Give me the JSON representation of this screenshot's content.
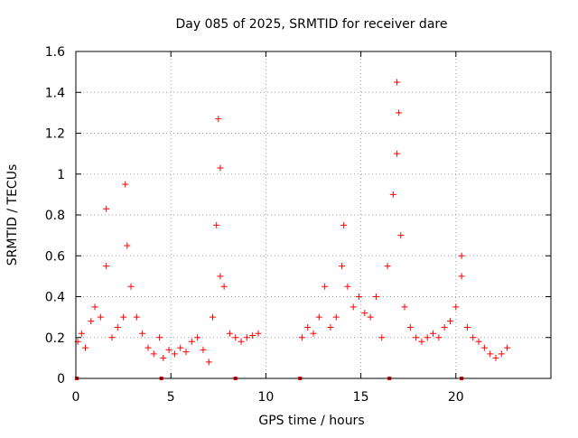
{
  "chart_data": {
    "type": "scatter",
    "title": "Day 085 of 2025, SRMTID for receiver dare",
    "xlabel": "GPS time / hours",
    "ylabel": "SRMTID / TECUs",
    "xlim": [
      0,
      25
    ],
    "ylim": [
      0,
      1.6
    ],
    "xticks": [
      0,
      5,
      10,
      15,
      20
    ],
    "yticks": [
      0,
      0.2,
      0.4,
      0.6,
      0.8,
      1,
      1.2,
      1.4,
      1.6
    ],
    "xtick_labels": [
      "0",
      "5",
      "10",
      "15",
      "20"
    ],
    "ytick_labels": [
      "0",
      "0.2",
      "0.4",
      "0.6",
      "0.8",
      "1",
      "1.2",
      "1.4",
      "1.6"
    ],
    "grid": true,
    "marker": "+",
    "series_color": "#ff0000",
    "baseline_markers_x": [
      0.05,
      4.5,
      8.4,
      11.8,
      16.5,
      20.3
    ],
    "segments": [
      {
        "x": [
          0.1,
          0.3,
          0.5,
          0.8,
          1.0,
          1.3,
          1.6,
          1.9,
          2.2,
          2.5,
          2.7,
          2.9,
          3.2,
          3.5,
          3.8,
          4.1,
          4.4
        ],
        "y": [
          0.18,
          0.22,
          0.15,
          0.28,
          0.35,
          0.3,
          0.55,
          0.2,
          0.25,
          0.3,
          0.65,
          0.45,
          0.3,
          0.22,
          0.15,
          0.12,
          0.2
        ]
      },
      {
        "x": [
          4.6,
          4.9,
          5.2,
          5.5,
          5.8,
          6.1,
          6.4,
          6.7,
          7.0,
          7.2,
          7.4,
          7.6,
          7.8,
          8.1,
          8.4,
          8.7,
          9.0,
          9.3,
          9.6
        ],
        "y": [
          0.1,
          0.14,
          0.12,
          0.15,
          0.13,
          0.18,
          0.2,
          0.14,
          0.08,
          0.3,
          0.75,
          0.5,
          0.45,
          0.22,
          0.2,
          0.18,
          0.2,
          0.21,
          0.22
        ]
      },
      {
        "x": [
          11.9,
          12.2,
          12.5,
          12.8,
          13.1,
          13.4,
          13.7,
          14.0,
          14.3,
          14.6,
          14.9,
          15.2,
          15.5,
          15.8,
          16.1,
          16.4,
          16.7,
          16.9,
          17.1,
          17.3,
          17.6,
          17.9,
          18.2,
          18.5,
          18.8,
          19.1,
          19.4,
          19.7,
          20.0,
          20.3,
          20.6,
          20.9,
          21.2,
          21.5,
          21.8,
          22.1,
          22.4,
          22.7
        ],
        "y": [
          0.2,
          0.25,
          0.22,
          0.3,
          0.45,
          0.25,
          0.3,
          0.55,
          0.45,
          0.35,
          0.4,
          0.32,
          0.3,
          0.4,
          0.2,
          0.55,
          0.9,
          1.1,
          0.7,
          0.35,
          0.25,
          0.2,
          0.18,
          0.2,
          0.22,
          0.2,
          0.25,
          0.28,
          0.35,
          0.5,
          0.25,
          0.2,
          0.18,
          0.15,
          0.12,
          0.1,
          0.12,
          0.15
        ]
      }
    ],
    "peaks": [
      {
        "x": 1.6,
        "y": 0.83
      },
      {
        "x": 2.6,
        "y": 0.95
      },
      {
        "x": 7.5,
        "y": 1.27
      },
      {
        "x": 7.6,
        "y": 1.03
      },
      {
        "x": 14.1,
        "y": 0.75
      },
      {
        "x": 16.9,
        "y": 1.45
      },
      {
        "x": 17.0,
        "y": 1.3
      },
      {
        "x": 20.3,
        "y": 0.6
      }
    ]
  }
}
